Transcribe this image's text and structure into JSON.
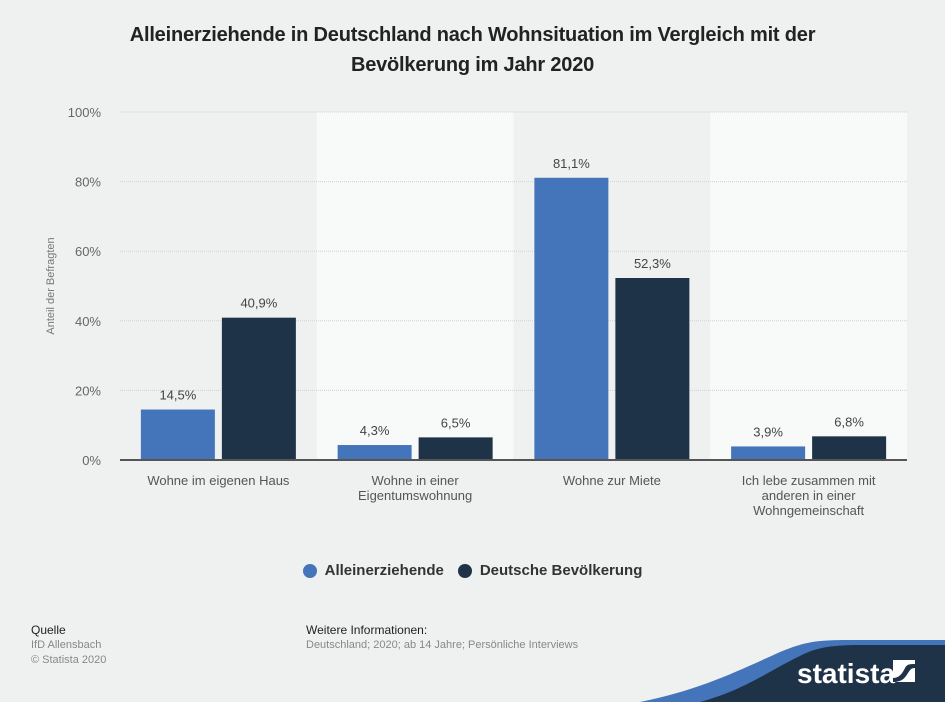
{
  "title": "Alleinerziehende in Deutschland nach Wohnsituation im Vergleich mit der Bevölkerung im Jahr 2020",
  "title_lines": [
    "Alleinerziehende in Deutschland nach Wohnsituation im Vergleich mit der",
    "Bevölkerung im Jahr 2020"
  ],
  "chart_data": {
    "type": "bar",
    "title": "Alleinerziehende in Deutschland nach Wohnsituation im Vergleich mit der Bevölkerung im Jahr 2020",
    "xlabel": "",
    "ylabel": "Anteil der Befragten",
    "ylim": [
      0,
      100
    ],
    "yticks": [
      0,
      20,
      40,
      60,
      80,
      100
    ],
    "ytick_labels": [
      "0%",
      "20%",
      "40%",
      "60%",
      "80%",
      "100%"
    ],
    "grid": true,
    "categories": [
      [
        "Wohne im eigenen Haus"
      ],
      [
        "Wohne in einer",
        "Eigentumswohnung"
      ],
      [
        "Wohne zur Miete"
      ],
      [
        "Ich lebe zusammen mit",
        "anderen in einer",
        "Wohngemeinschaft"
      ]
    ],
    "series": [
      {
        "name": "Alleinerziehende",
        "color": "#4474b9",
        "values": [
          14.5,
          4.3,
          81.1,
          3.9
        ],
        "labels": [
          "14,5%",
          "4,3%",
          "81,1%",
          "3,9%"
        ]
      },
      {
        "name": "Deutsche Bevölkerung",
        "color": "#1e3248",
        "values": [
          40.9,
          6.5,
          52.3,
          6.8
        ],
        "labels": [
          "40,9%",
          "6,5%",
          "52,3%",
          "6,8%"
        ]
      }
    ],
    "legend": "bottom-center"
  },
  "footer": {
    "source_heading": "Quelle",
    "source": "IfD Allensbach",
    "copyright": "© Statista 2020",
    "info_heading": "Weitere Informationen:",
    "info": "Deutschland; 2020; ab 14 Jahre; Persönliche Interviews"
  },
  "brand": {
    "name": "statista",
    "dark": "#1e3248",
    "accent": "#4474b9"
  }
}
